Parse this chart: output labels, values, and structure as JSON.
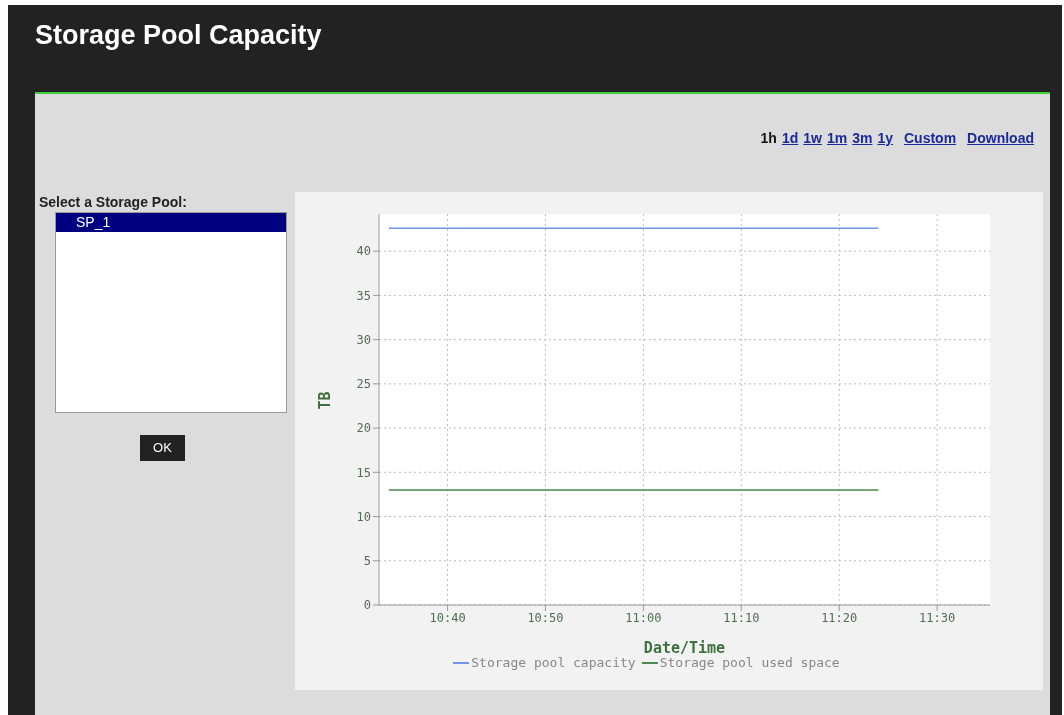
{
  "chart_data": {
    "type": "line",
    "title": "Storage Pool Capacity",
    "xlabel": "Date/Time",
    "ylabel": "TB",
    "x": [
      10.5667,
      11.4
    ],
    "series": [
      {
        "name": "Storage pool capacity",
        "color": "#6f95e8",
        "values": [
          42.6,
          42.6
        ]
      },
      {
        "name": "Storage pool used space",
        "color": "#4a8a4a",
        "values": [
          13.0,
          13.0
        ]
      }
    ],
    "xlim": [
      10.55,
      11.59
    ],
    "xticks": [
      {
        "value": 10.6667,
        "label": "10:40"
      },
      {
        "value": 10.8333,
        "label": "10:50"
      },
      {
        "value": 11,
        "label": "11:00"
      },
      {
        "value": 11.1667,
        "label": "11:10"
      },
      {
        "value": 11.3333,
        "label": "11:20"
      },
      {
        "value": 11.5,
        "label": "11:30"
      }
    ],
    "ylim": [
      0,
      44.2
    ],
    "yticks": [
      0,
      5,
      10,
      15,
      20,
      25,
      30,
      35,
      40
    ],
    "grid": true,
    "legend": "bottom",
    "marker": "none",
    "line_style": "solid",
    "annotations": [
      "1h",
      "1d",
      "1w",
      "1m",
      "3m",
      "1y",
      "Custom",
      "Download",
      "Select a Storage Pool:",
      "SP_1",
      "OK"
    ]
  }
}
